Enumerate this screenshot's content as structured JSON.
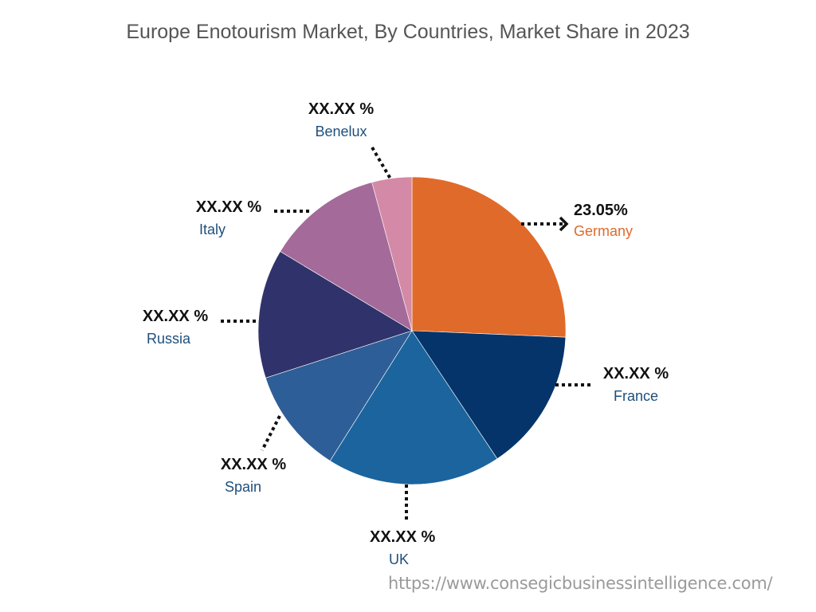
{
  "title": "Europe Enotourism Market, By Countries, Market Share in 2023",
  "source_url": "https://www.consegicbusinessintelligence.com/",
  "labels": {
    "germany": {
      "value": "23.05%",
      "name": "Germany"
    },
    "france": {
      "value": "XX.XX %",
      "name": "France"
    },
    "uk": {
      "value": "XX.XX %",
      "name": "UK"
    },
    "spain": {
      "value": "XX.XX %",
      "name": "Spain"
    },
    "russia": {
      "value": "XX.XX %",
      "name": "Russia"
    },
    "italy": {
      "value": "XX.XX %",
      "name": "Italy"
    },
    "benelux": {
      "value": "XX.XX %",
      "name": "Benelux"
    }
  },
  "colors": {
    "germany": "#e06a2a",
    "france": "#04346a",
    "uk": "#1b649e",
    "spain": "#2e5e97",
    "russia": "#30336b",
    "italy": "#a46a9a",
    "benelux": "#d48aa6"
  },
  "chart_data": {
    "type": "pie",
    "title": "Europe Enotourism Market, By Countries, Market Share in 2023",
    "categories": [
      "Germany",
      "France",
      "UK",
      "Spain",
      "Russia",
      "Italy",
      "Benelux"
    ],
    "values": [
      23.05,
      null,
      null,
      null,
      null,
      null,
      null
    ],
    "value_labels": [
      "23.05%",
      "XX.XX %",
      "XX.XX %",
      "XX.XX %",
      "XX.XX %",
      "XX.XX %",
      "XX.XX %"
    ],
    "estimated_visual_share_pct": [
      25.7,
      15.0,
      18.3,
      11.1,
      13.6,
      12.2,
      4.2
    ],
    "start_angle_deg": 0,
    "direction": "clockwise",
    "legend": "none (callout labels)",
    "source": "https://www.consegicbusinessintelligence.com/"
  }
}
